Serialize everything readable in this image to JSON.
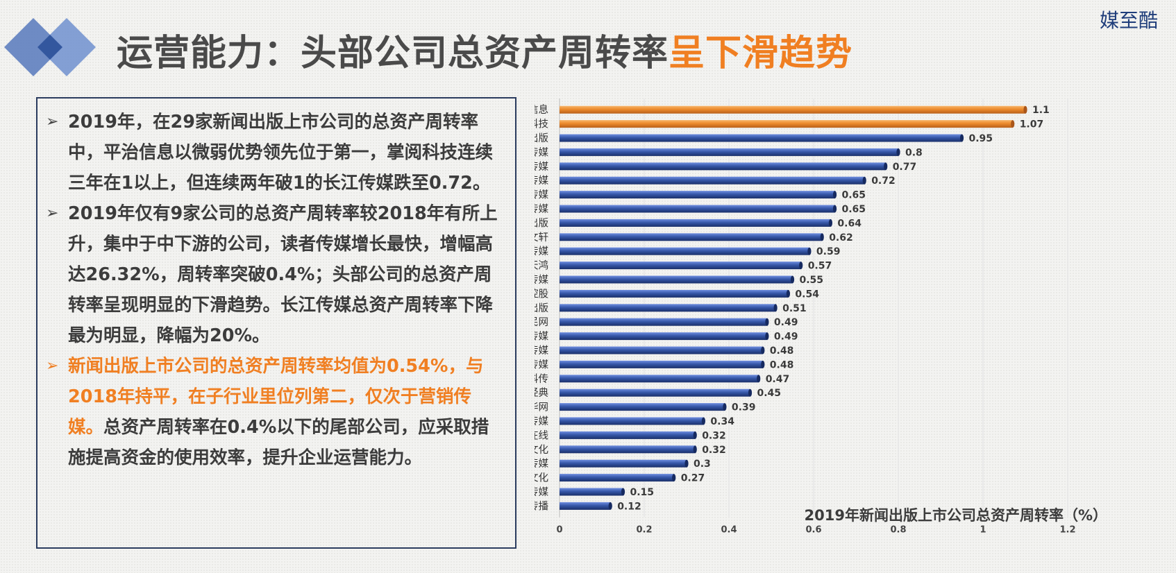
{
  "header": {
    "title_main": "运营能力：头部公司总资产周转率",
    "title_accent": "呈下滑趋势",
    "brand": "媒至酷"
  },
  "colors": {
    "accent": "#f07f22",
    "bar_blue": "#2f4f9c",
    "bar_orange": "#ec8a2c",
    "title_gray": "#4a4a4a",
    "box_border": "#2a3b5e"
  },
  "bullets": [
    {
      "text": "2019年，在29家新闻出版上市公司的总资产周转率中，平治信息以微弱优势领先位于第一，掌阅科技连续三年在1以上，但连续两年破1的长江传媒跌至0.72。"
    },
    {
      "text": "2019年仅有9家公司的总资产周转率较2018年有所上升，集中于中下游的公司，读者传媒增长最快，增幅高达26.32%，周转率突破0.4%；头部公司的总资产周转率呈现明显的下滑趋势。长江传媒总资产周转率下降最为明显，降幅为20%。"
    },
    {
      "highlight": "新闻出版上市公司的总资产周转率均值为0.54%，与2018年持平，在子行业里位列第二，仅次于营销传媒。",
      "rest": "总资产周转率在0.4%以下的尾部公司，应采取措施提高资金的使用效率，提升企业运营能力。"
    }
  ],
  "chart_data": {
    "type": "bar",
    "orientation": "horizontal",
    "title": "2019年新闻出版上市公司总资产周转率（%）",
    "categories": [
      "平治信息",
      "掌阅科技",
      "时代出版",
      "中原传媒",
      "出版传媒",
      "长江传媒",
      "南方传媒",
      "皖新传媒",
      "山东出版",
      "新华文轩",
      "城市传媒",
      "世纪天鸿",
      "凤凰传媒",
      "华媒控股",
      "中国出版",
      "人民网",
      "中南传媒",
      "读者传媒",
      "中文传媒",
      "中国科传",
      "新经典",
      "新华网",
      "新华传媒",
      "中文在线",
      "天舟文化",
      "华闻传媒",
      "浙数文化",
      "粤传媒",
      "博瑞传播"
    ],
    "values": [
      1.1,
      1.07,
      0.95,
      0.8,
      0.77,
      0.72,
      0.65,
      0.65,
      0.64,
      0.62,
      0.59,
      0.57,
      0.55,
      0.54,
      0.51,
      0.49,
      0.49,
      0.48,
      0.48,
      0.47,
      0.45,
      0.39,
      0.34,
      0.32,
      0.32,
      0.3,
      0.27,
      0.15,
      0.12
    ],
    "value_labels": [
      "1.1",
      "1.07",
      "0.95",
      "0.8",
      "0.77",
      "0.72",
      "0.65",
      "0.65",
      "0.64",
      "0.62",
      "0.59",
      "0.57",
      "0.55",
      "0.54",
      "0.51",
      "0.49",
      "0.49",
      "0.48",
      "0.48",
      "0.47",
      "0.45",
      "0.39",
      "0.34",
      "0.32",
      "0.32",
      "0.3",
      "0.27",
      "0.15",
      "0.12"
    ],
    "highlight_count": 2,
    "xlim": [
      0,
      1.2
    ],
    "xticks": [
      0,
      0.2,
      0.4,
      0.6,
      0.8,
      1,
      1.2
    ],
    "xtick_labels": [
      "0",
      "0.2",
      "0.4",
      "0.6",
      "0.8",
      "1",
      "1.2"
    ],
    "grid": true,
    "legend": "none"
  }
}
